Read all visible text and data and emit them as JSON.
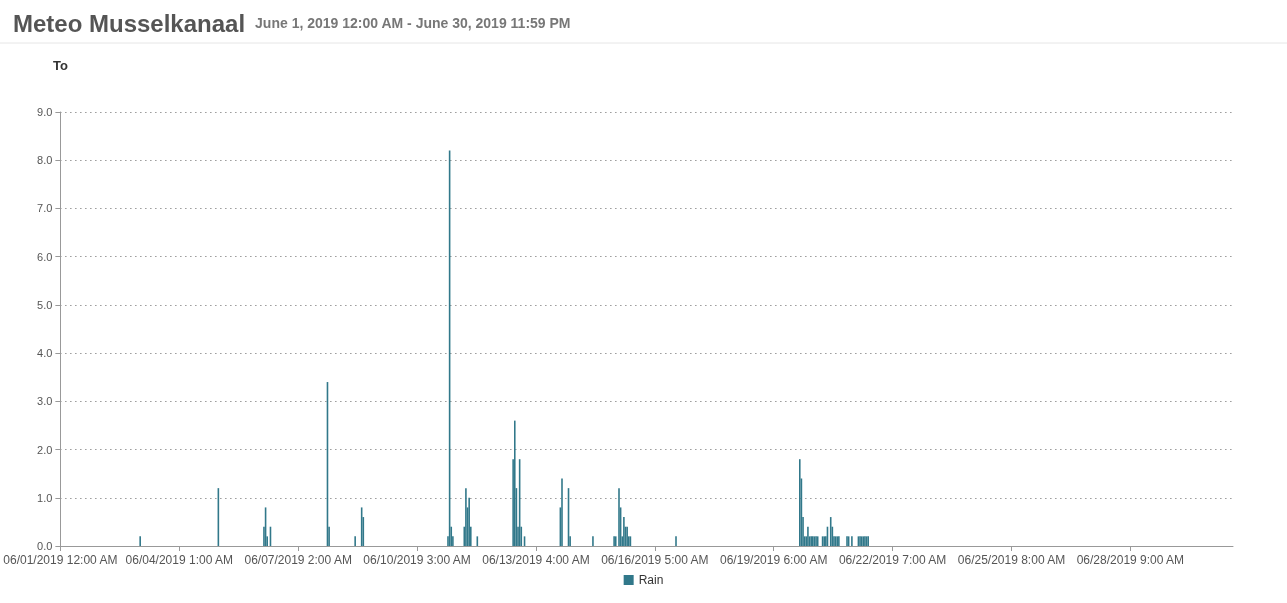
{
  "chart_data": {
    "type": "bar",
    "title": "Meteo Musselkanaal",
    "subtitle": "June 1, 2019 12:00 AM - June 30, 2019 11:59 PM",
    "ylabel": "To",
    "xlim": [
      "2019-06-01T00:00",
      "2019-07-01T00:00"
    ],
    "xticks": [
      {
        "value": "2019-06-01T00:00",
        "label": "06/01/2019 12:00 AM"
      },
      {
        "value": "2019-06-04T01:00",
        "label": "06/04/2019 1:00 AM"
      },
      {
        "value": "2019-06-07T02:00",
        "label": "06/07/2019 2:00 AM"
      },
      {
        "value": "2019-06-10T03:00",
        "label": "06/10/2019 3:00 AM"
      },
      {
        "value": "2019-06-13T04:00",
        "label": "06/13/2019 4:00 AM"
      },
      {
        "value": "2019-06-16T05:00",
        "label": "06/16/2019 5:00 AM"
      },
      {
        "value": "2019-06-19T06:00",
        "label": "06/19/2019 6:00 AM"
      },
      {
        "value": "2019-06-22T07:00",
        "label": "06/22/2019 7:00 AM"
      },
      {
        "value": "2019-06-25T08:00",
        "label": "06/25/2019 8:00 AM"
      },
      {
        "value": "2019-06-28T09:00",
        "label": "06/28/2019 9:00 AM"
      }
    ],
    "ylim": [
      0,
      9
    ],
    "yticks": [
      {
        "value": 0,
        "label": "0.0"
      },
      {
        "value": 1,
        "label": "1.0"
      },
      {
        "value": 2,
        "label": "2.0"
      },
      {
        "value": 3,
        "label": "3.0"
      },
      {
        "value": 4,
        "label": "4.0"
      },
      {
        "value": 5,
        "label": "5.0"
      },
      {
        "value": 6,
        "label": "6.0"
      },
      {
        "value": 7,
        "label": "7.0"
      },
      {
        "value": 8,
        "label": "8.0"
      },
      {
        "value": 9,
        "label": "9.0"
      }
    ],
    "grid": "y",
    "legend": "bottom",
    "series": [
      {
        "name": "Rain",
        "color": "#31788a",
        "x": [
          "2019-06-03T01:00",
          "2019-06-05T01:00",
          "2019-06-06T05:00",
          "2019-06-06T06:00",
          "2019-06-06T07:00",
          "2019-06-06T09:00",
          "2019-06-07T20:00",
          "2019-06-07T21:00",
          "2019-06-08T13:00",
          "2019-06-08T17:00",
          "2019-06-08T18:00",
          "2019-06-10T22:00",
          "2019-06-10T23:00",
          "2019-06-11T00:00",
          "2019-06-11T01:00",
          "2019-06-11T08:00",
          "2019-06-11T09:00",
          "2019-06-11T10:00",
          "2019-06-11T11:00",
          "2019-06-11T12:00",
          "2019-06-11T16:00",
          "2019-06-12T14:00",
          "2019-06-12T15:00",
          "2019-06-12T16:00",
          "2019-06-12T17:00",
          "2019-06-12T18:00",
          "2019-06-12T19:00",
          "2019-06-12T21:00",
          "2019-06-13T19:00",
          "2019-06-13T20:00",
          "2019-06-14T00:00",
          "2019-06-14T01:00",
          "2019-06-14T15:00",
          "2019-06-15T04:00",
          "2019-06-15T05:00",
          "2019-06-15T07:00",
          "2019-06-15T08:00",
          "2019-06-15T09:00",
          "2019-06-15T10:00",
          "2019-06-15T11:00",
          "2019-06-15T12:00",
          "2019-06-15T13:00",
          "2019-06-15T14:00",
          "2019-06-16T18:00",
          "2019-06-19T22:00",
          "2019-06-19T23:00",
          "2019-06-20T00:00",
          "2019-06-20T01:00",
          "2019-06-20T02:00",
          "2019-06-20T03:00",
          "2019-06-20T04:00",
          "2019-06-20T05:00",
          "2019-06-20T06:00",
          "2019-06-20T07:00",
          "2019-06-20T08:00",
          "2019-06-20T09:00",
          "2019-06-20T12:00",
          "2019-06-20T13:00",
          "2019-06-20T14:00",
          "2019-06-20T15:00",
          "2019-06-20T17:00",
          "2019-06-20T18:00",
          "2019-06-20T19:00",
          "2019-06-20T20:00",
          "2019-06-20T21:00",
          "2019-06-20T22:00",
          "2019-06-21T03:00",
          "2019-06-21T04:00",
          "2019-06-21T06:00",
          "2019-06-21T10:00",
          "2019-06-21T11:00",
          "2019-06-21T12:00",
          "2019-06-21T13:00",
          "2019-06-21T14:00",
          "2019-06-21T15:00",
          "2019-06-21T16:00"
        ],
        "values": [
          0.2,
          1.2,
          0.4,
          0.8,
          0.2,
          0.4,
          3.4,
          0.4,
          0.2,
          0.8,
          0.6,
          0.2,
          8.2,
          0.4,
          0.2,
          0.4,
          1.2,
          0.8,
          1.0,
          0.4,
          0.2,
          1.8,
          2.6,
          1.2,
          0.4,
          1.8,
          0.4,
          0.2,
          0.8,
          1.4,
          1.2,
          0.2,
          0.2,
          0.2,
          0.2,
          1.2,
          0.8,
          0.2,
          0.6,
          0.4,
          0.4,
          0.2,
          0.2,
          0.2,
          1.8,
          1.4,
          0.6,
          0.2,
          0.2,
          0.4,
          0.2,
          0.2,
          0.2,
          0.2,
          0.2,
          0.2,
          0.2,
          0.2,
          0.2,
          0.4,
          0.6,
          0.4,
          0.2,
          0.2,
          0.2,
          0.2,
          0.2,
          0.2,
          0.2,
          0.2,
          0.2,
          0.2,
          0.2,
          0.2,
          0.2,
          0.2
        ]
      }
    ]
  }
}
